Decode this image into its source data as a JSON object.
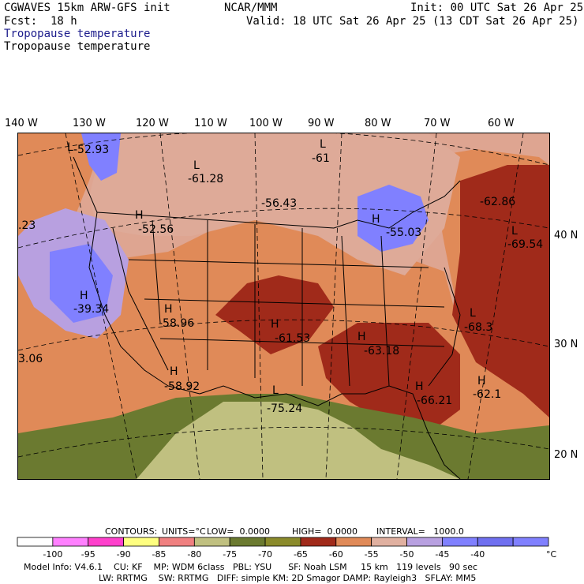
{
  "header": {
    "model": "CGWAVES 15km ARW-GFS init",
    "org": "NCAR/MMM",
    "init": "Init: 00 UTC Sat 26 Apr 25",
    "fcst": "Fcst:  18 h",
    "valid": "Valid: 18 UTC Sat 26 Apr 25 (13 CDT Sat 26 Apr 25)",
    "title_blue": "Tropopause temperature",
    "title_black": "Tropopause temperature"
  },
  "lon_labels": [
    "140 W",
    "130 W",
    "120 W",
    "110 W",
    "100 W",
    "90 W",
    "80 W",
    "70 W",
    "60 W"
  ],
  "lat_labels": [
    "40 N",
    "30 N",
    "20 N"
  ],
  "map_labels": {
    "hl": [
      "L",
      "H",
      "L",
      "L",
      "H",
      "H",
      "H",
      "H",
      "L",
      "H",
      "L",
      "H",
      "L",
      "H",
      "L",
      "H"
    ],
    "values": [
      "-52.93",
      "-61",
      "-61.28",
      "-56.43",
      "-62.86",
      "-52.56",
      "-55.03",
      "-69.54",
      "-39.34",
      "-58.96",
      "-68.3",
      "-61.53",
      "-63.18",
      "-58.92",
      "-62.1",
      "-75.24",
      "-66.21"
    ],
    "edge_left": [
      ".23",
      "3.06"
    ]
  },
  "contour_info": {
    "contours": "CONTOURS:",
    "units": "UNITS=°C",
    "low": "LOW=  0.0000",
    "high": "HIGH=  0.0000",
    "interval": "INTERVAL=   1000.0"
  },
  "colorbar": {
    "colors": [
      "#ffffff",
      "#ff80ff",
      "#ff40cc",
      "#ffff80",
      "#f08080",
      "#c0c080",
      "#6b7a30",
      "#8b8b2b",
      "#a02a1a",
      "#e08a58",
      "#e0b0a0",
      "#b8a0e0",
      "#8080ff",
      "#7070f0",
      "#8080ff"
    ],
    "labels": [
      "-100",
      "-95",
      "-90",
      "-85",
      "-80",
      "-75",
      "-70",
      "-65",
      "-60",
      "-55",
      "-50",
      "-45",
      "-40"
    ],
    "unit": "°C"
  },
  "footer": {
    "line1": "Model Info: V4.6.1    CU: KF    MP: WDM 6class   PBL: YSU      SF: Noah LSM     15 km   119 levels   90 sec",
    "line2": "LW: RRTMG    SW: RRTMG   DIFF: simple KM: 2D Smagor DAMP: Rayleigh3   SFLAY: MM5"
  }
}
